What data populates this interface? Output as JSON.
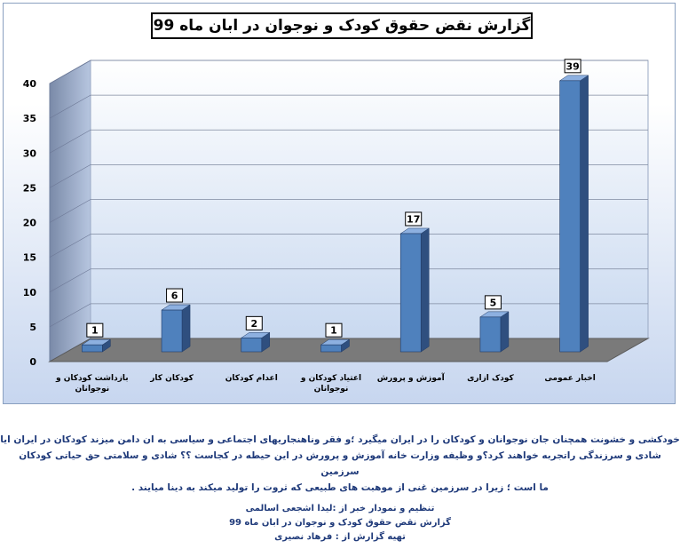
{
  "chart_data": {
    "type": "bar",
    "title": "گزارش نقض حقوق کودک و نوجوان در ابان ماه 99",
    "categories": [
      "بازداشت کودکان و نوجوانان",
      "کودکان کار",
      "اعدام کودکان",
      "اعتیاد کودکان و نوجوانان",
      "آموزش و پرورش",
      "کودک ازاری",
      "اخبار عمومی"
    ],
    "values": [
      1,
      6,
      2,
      1,
      17,
      5,
      39
    ],
    "data_labels": [
      "1",
      "6",
      "2",
      "1",
      "17",
      "5",
      "39"
    ],
    "yticks": [
      "0",
      "5",
      "10",
      "15",
      "20",
      "25",
      "30",
      "35",
      "40"
    ],
    "ylim": [
      0,
      40
    ],
    "grid": true,
    "bar_color": "#4f81bd",
    "xlabel": "",
    "ylabel": ""
  },
  "caption": {
    "line1": "خودکشی و خشونت همچنان جان نوجوانان و کودکان را در ایران میگیرد ؛و فقر وناهنجاریهای اجتماعی و سیاسی به ان دامن میزند کودکان در ایران ایا",
    "line2": "شادی و سرزندگی راتجربه خواهند کرد؟و وظیفه وزارت خانه آموزش و پرورش در این حیطه در کجاست ؟؟ شادی و سلامتی حق حیاتی کودکان سرزمین",
    "line3": "ما است ؛ زیرا در سرزمین غنی از موهبت های طبیعی که ثروت را تولید میکند به دینا میایند ."
  },
  "credits": {
    "line1": "تنظیم و نمودار خبر از :لیدا اشجعی اسالمی",
    "line2": "گزارش نقض حقوق کودک و نوجوان در ابان ماه 99",
    "line3": "تهیه گزارش از : فرهاد نصیری"
  }
}
